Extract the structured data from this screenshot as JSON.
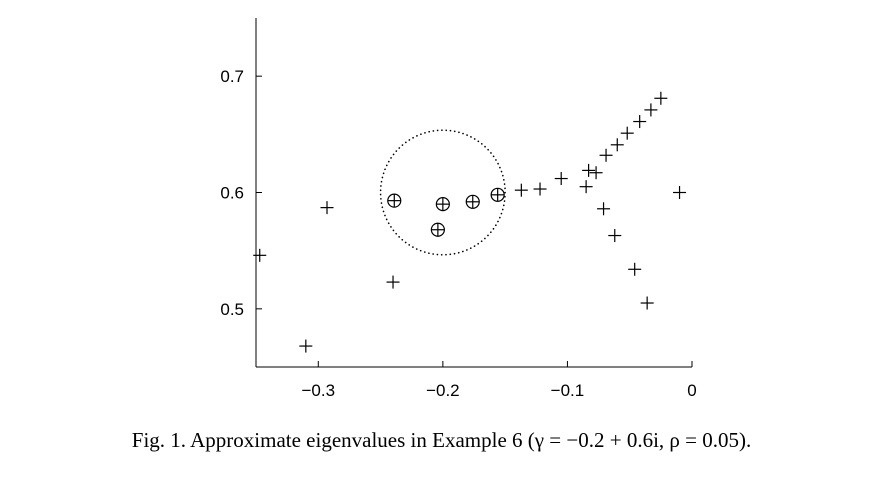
{
  "caption": {
    "text": "Fig. 1. Approximate eigenvalues in Example 6 (γ = −0.2 + 0.6i, ρ = 0.05)."
  },
  "chart_data": {
    "type": "scatter",
    "xlim": [
      -0.35,
      0
    ],
    "ylim": [
      0.45,
      0.75
    ],
    "x_ticks": [
      -0.3,
      -0.2,
      -0.1,
      0
    ],
    "x_tick_labels": [
      "−0.3",
      "−0.2",
      "−0.1",
      "0"
    ],
    "y_ticks": [
      0.5,
      0.6,
      0.7
    ],
    "y_tick_labels": [
      "0.5",
      "0.6",
      "0.7"
    ],
    "grid": false,
    "region": {
      "shape": "circle",
      "center": [
        -0.2,
        0.6
      ],
      "radius": 0.05,
      "style": "dotted"
    },
    "series": [
      {
        "marker": "plus",
        "points": [
          [
            -0.347,
            0.546
          ],
          [
            -0.31,
            0.468
          ],
          [
            -0.293,
            0.587
          ],
          [
            -0.24,
            0.523
          ],
          [
            -0.137,
            0.602
          ],
          [
            -0.122,
            0.603
          ],
          [
            -0.105,
            0.612
          ],
          [
            -0.085,
            0.605
          ],
          [
            -0.083,
            0.619
          ],
          [
            -0.077,
            0.617
          ],
          [
            -0.071,
            0.586
          ],
          [
            -0.069,
            0.632
          ],
          [
            -0.062,
            0.563
          ],
          [
            -0.06,
            0.641
          ],
          [
            -0.052,
            0.651
          ],
          [
            -0.046,
            0.534
          ],
          [
            -0.042,
            0.661
          ],
          [
            -0.036,
            0.505
          ],
          [
            -0.033,
            0.671
          ],
          [
            -0.025,
            0.681
          ],
          [
            -0.01,
            0.6
          ]
        ]
      },
      {
        "marker": "circled-plus",
        "points": [
          [
            -0.239,
            0.593
          ],
          [
            -0.2,
            0.59
          ],
          [
            -0.204,
            0.568
          ],
          [
            -0.176,
            0.592
          ],
          [
            -0.156,
            0.598
          ]
        ]
      }
    ]
  }
}
